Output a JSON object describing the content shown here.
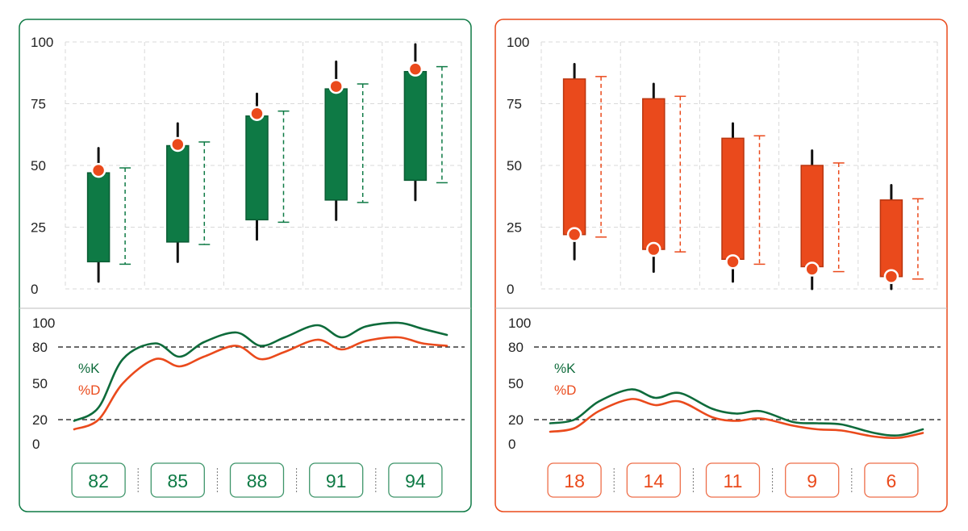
{
  "colors": {
    "bull": "#0e7a45",
    "bull_dark": "#0a5c34",
    "bear": "#ea4a1c",
    "bear_dark": "#b9350f",
    "wick": "#111111",
    "marker": "#ea4a1c",
    "grid": "#d9d9d9",
    "ref_line": "#111111",
    "k_line": "#0e6b3b",
    "d_line": "#ea4a1c"
  },
  "chart_data": [
    {
      "type": "candlestick",
      "trend": "bullish",
      "price_chart": {
        "ylim": [
          0,
          100
        ],
        "yticks": [
          0,
          25,
          50,
          75,
          100
        ],
        "grid": true,
        "candles": [
          {
            "open": 11,
            "close": 47,
            "high": 57,
            "low": 3,
            "marker": 48,
            "range": [
              10,
              49
            ]
          },
          {
            "open": 19,
            "close": 58,
            "high": 67,
            "low": 11,
            "marker": 58.5,
            "range": [
              18,
              59.5
            ]
          },
          {
            "open": 28,
            "close": 70,
            "high": 79,
            "low": 20,
            "marker": 71,
            "range": [
              27,
              72
            ]
          },
          {
            "open": 36,
            "close": 81,
            "high": 92,
            "low": 28,
            "marker": 82,
            "range": [
              35,
              83
            ]
          },
          {
            "open": 44,
            "close": 88,
            "high": 99,
            "low": 36,
            "marker": 89,
            "range": [
              43,
              90
            ]
          }
        ]
      },
      "oscillator": {
        "ylim": [
          0,
          100
        ],
        "yticks": [
          0,
          20,
          50,
          80,
          100
        ],
        "ref_lines": [
          20,
          80
        ],
        "legend": [
          "%K",
          "%D"
        ],
        "x": [
          0,
          0.3,
          0.6,
          1,
          1.3,
          1.6,
          2,
          2.3,
          2.6,
          3,
          3.3,
          3.6,
          4,
          4.3,
          4.6
        ],
        "series": [
          {
            "name": "%K",
            "values": [
              19,
              30,
              70,
              83,
              72,
              84,
              92,
              81,
              88,
              98,
              88,
              97,
              100,
              95,
              90
            ]
          },
          {
            "name": "%D",
            "values": [
              12,
              20,
              50,
              70,
              64,
              72,
              81,
              70,
              76,
              86,
              78,
              85,
              88,
              83,
              81
            ]
          }
        ]
      },
      "labels": [
        "82",
        "85",
        "88",
        "91",
        "94"
      ]
    },
    {
      "type": "candlestick",
      "trend": "bearish",
      "price_chart": {
        "ylim": [
          0,
          100
        ],
        "yticks": [
          0,
          25,
          50,
          75,
          100
        ],
        "grid": true,
        "candles": [
          {
            "open": 85,
            "close": 22,
            "high": 91,
            "low": 12,
            "marker": 22,
            "range": [
              21,
              86
            ]
          },
          {
            "open": 77,
            "close": 16,
            "high": 83,
            "low": 7,
            "marker": 16,
            "range": [
              15,
              78
            ]
          },
          {
            "open": 61,
            "close": 12,
            "high": 67,
            "low": 3,
            "marker": 11,
            "range": [
              10,
              62
            ]
          },
          {
            "open": 50,
            "close": 9,
            "high": 56,
            "low": 0,
            "marker": 8,
            "range": [
              7,
              51
            ]
          },
          {
            "open": 36,
            "close": 5,
            "high": 42,
            "low": 0,
            "marker": 5,
            "range": [
              4,
              36.5
            ]
          }
        ]
      },
      "oscillator": {
        "ylim": [
          0,
          100
        ],
        "yticks": [
          0,
          20,
          50,
          80,
          100
        ],
        "ref_lines": [
          20,
          80
        ],
        "legend": [
          "%K",
          "%D"
        ],
        "x": [
          0,
          0.3,
          0.6,
          1,
          1.3,
          1.6,
          2,
          2.3,
          2.6,
          3,
          3.3,
          3.6,
          4,
          4.3,
          4.6
        ],
        "series": [
          {
            "name": "%K",
            "values": [
              17,
              20,
              35,
              45,
              38,
              42,
              29,
              25,
              27,
              18,
              17,
              16,
              9,
              7,
              12
            ]
          },
          {
            "name": "%D",
            "values": [
              10,
              13,
              27,
              37,
              32,
              35,
              22,
              19,
              21,
              15,
              12,
              11,
              6,
              5,
              9
            ]
          }
        ]
      },
      "labels": [
        "18",
        "14",
        "11",
        "9",
        "6"
      ]
    }
  ]
}
